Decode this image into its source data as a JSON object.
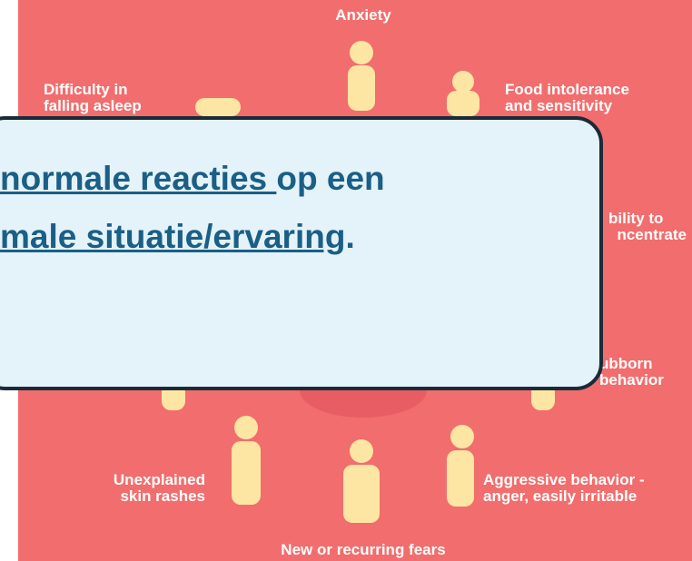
{
  "labels": {
    "anxiety": "Anxiety",
    "sleep": [
      "Difficulty in",
      "falling asleep"
    ],
    "food": [
      "Food intolerance",
      "and sensitivity"
    ],
    "concentrate": [
      "bility to",
      "ncentrate"
    ],
    "stubborn": [
      "ubborn",
      "behavior"
    ],
    "skin": [
      "Unexplained",
      "skin rashes"
    ],
    "aggressive": [
      "Aggressive behavior -",
      "anger, easily irritable"
    ],
    "fears": "New or recurring fears"
  },
  "callout": {
    "line1": [
      "normale reacties ",
      "op een"
    ],
    "line2": [
      "male situatie/ervaring",
      "."
    ]
  }
}
